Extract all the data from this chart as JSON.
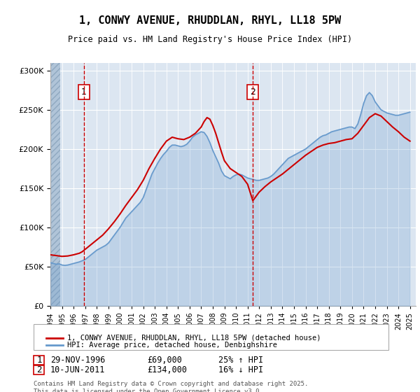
{
  "title": "1, CONWY AVENUE, RHUDDLAN, RHYL, LL18 5PW",
  "subtitle": "Price paid vs. HM Land Registry's House Price Index (HPI)",
  "ylabel": "",
  "xlim_start": 1994.0,
  "xlim_end": 2025.5,
  "ylim": [
    0,
    310000
  ],
  "yticks": [
    0,
    50000,
    100000,
    150000,
    200000,
    250000,
    300000
  ],
  "ytick_labels": [
    "£0",
    "£50K",
    "£100K",
    "£150K",
    "£200K",
    "£250K",
    "£300K"
  ],
  "background_color": "#ffffff",
  "plot_bg_color": "#dce6f1",
  "hatch_color": "#b0c4d8",
  "red_color": "#cc0000",
  "blue_color": "#6699cc",
  "grid_color": "#ffffff",
  "annotation1": {
    "x": 1996.9,
    "label": "1",
    "date": "29-NOV-1996",
    "price": "£69,000",
    "pct": "25% ↑ HPI"
  },
  "annotation2": {
    "x": 2011.45,
    "label": "2",
    "date": "10-JUN-2011",
    "price": "£134,000",
    "pct": "16% ↓ HPI"
  },
  "legend_line1": "1, CONWY AVENUE, RHUDDLAN, RHYL, LL18 5PW (detached house)",
  "legend_line2": "HPI: Average price, detached house, Denbighshire",
  "footer": "Contains HM Land Registry data © Crown copyright and database right 2025.\nThis data is licensed under the Open Government Licence v3.0.",
  "hpi_series": {
    "dates": [
      1994.0,
      1994.25,
      1994.5,
      1994.75,
      1995.0,
      1995.25,
      1995.5,
      1995.75,
      1996.0,
      1996.25,
      1996.5,
      1996.75,
      1997.0,
      1997.25,
      1997.5,
      1997.75,
      1998.0,
      1998.25,
      1998.5,
      1998.75,
      1999.0,
      1999.25,
      1999.5,
      1999.75,
      2000.0,
      2000.25,
      2000.5,
      2000.75,
      2001.0,
      2001.25,
      2001.5,
      2001.75,
      2002.0,
      2002.25,
      2002.5,
      2002.75,
      2003.0,
      2003.25,
      2003.5,
      2003.75,
      2004.0,
      2004.25,
      2004.5,
      2004.75,
      2005.0,
      2005.25,
      2005.5,
      2005.75,
      2006.0,
      2006.25,
      2006.5,
      2006.75,
      2007.0,
      2007.25,
      2007.5,
      2007.75,
      2008.0,
      2008.25,
      2008.5,
      2008.75,
      2009.0,
      2009.25,
      2009.5,
      2009.75,
      2010.0,
      2010.25,
      2010.5,
      2010.75,
      2011.0,
      2011.25,
      2011.5,
      2011.75,
      2012.0,
      2012.25,
      2012.5,
      2012.75,
      2013.0,
      2013.25,
      2013.5,
      2013.75,
      2014.0,
      2014.25,
      2014.5,
      2014.75,
      2015.0,
      2015.25,
      2015.5,
      2015.75,
      2016.0,
      2016.25,
      2016.5,
      2016.75,
      2017.0,
      2017.25,
      2017.5,
      2017.75,
      2018.0,
      2018.25,
      2018.5,
      2018.75,
      2019.0,
      2019.25,
      2019.5,
      2019.75,
      2020.0,
      2020.25,
      2020.5,
      2020.75,
      2021.0,
      2021.25,
      2021.5,
      2021.75,
      2022.0,
      2022.25,
      2022.5,
      2022.75,
      2023.0,
      2023.25,
      2023.5,
      2023.75,
      2024.0,
      2024.25,
      2024.5,
      2024.75,
      2025.0
    ],
    "values": [
      55000,
      54000,
      53000,
      53500,
      52000,
      51500,
      52000,
      53000,
      54000,
      55000,
      56000,
      57500,
      59000,
      62000,
      65000,
      68000,
      71000,
      73000,
      75000,
      77000,
      80000,
      85000,
      90000,
      95000,
      100000,
      106000,
      112000,
      116000,
      120000,
      124000,
      128000,
      132000,
      138000,
      148000,
      158000,
      168000,
      175000,
      182000,
      188000,
      193000,
      197000,
      202000,
      205000,
      205000,
      204000,
      203000,
      204000,
      206000,
      210000,
      215000,
      218000,
      220000,
      222000,
      221000,
      216000,
      208000,
      198000,
      190000,
      182000,
      172000,
      166000,
      164000,
      162000,
      165000,
      167000,
      168000,
      167000,
      165000,
      163000,
      162000,
      161000,
      160000,
      160000,
      161000,
      162000,
      163000,
      165000,
      168000,
      172000,
      176000,
      180000,
      184000,
      188000,
      190000,
      192000,
      194000,
      196000,
      198000,
      200000,
      203000,
      206000,
      209000,
      212000,
      215000,
      217000,
      218000,
      220000,
      222000,
      223000,
      224000,
      225000,
      226000,
      227000,
      228000,
      228000,
      226000,
      232000,
      244000,
      258000,
      268000,
      272000,
      268000,
      260000,
      255000,
      250000,
      248000,
      246000,
      245000,
      244000,
      243000,
      243000,
      244000,
      245000,
      246000,
      247000
    ]
  },
  "price_series": {
    "dates": [
      1994.0,
      1994.5,
      1995.0,
      1995.5,
      1996.0,
      1996.5,
      1996.75,
      1997.0,
      1997.5,
      1998.0,
      1998.5,
      1999.0,
      1999.5,
      2000.0,
      2000.5,
      2001.0,
      2001.5,
      2002.0,
      2002.5,
      2003.0,
      2003.5,
      2004.0,
      2004.5,
      2005.0,
      2005.5,
      2006.0,
      2006.5,
      2007.0,
      2007.25,
      2007.5,
      2007.75,
      2008.0,
      2008.25,
      2008.5,
      2008.75,
      2009.0,
      2009.5,
      2010.0,
      2010.5,
      2011.0,
      2011.45,
      2012.0,
      2012.5,
      2013.0,
      2013.5,
      2014.0,
      2014.5,
      2015.0,
      2015.5,
      2016.0,
      2016.5,
      2017.0,
      2017.5,
      2018.0,
      2018.5,
      2019.0,
      2019.5,
      2020.0,
      2020.5,
      2021.0,
      2021.5,
      2022.0,
      2022.5,
      2023.0,
      2023.5,
      2024.0,
      2024.5,
      2025.0
    ],
    "values": [
      65000,
      64000,
      63000,
      63500,
      65000,
      67000,
      69000,
      72000,
      78000,
      84000,
      90000,
      98000,
      107000,
      117000,
      128000,
      138000,
      148000,
      160000,
      175000,
      188000,
      200000,
      210000,
      215000,
      213000,
      212000,
      215000,
      220000,
      228000,
      235000,
      240000,
      238000,
      230000,
      220000,
      208000,
      196000,
      185000,
      175000,
      170000,
      165000,
      155000,
      134000,
      145000,
      152000,
      158000,
      163000,
      168000,
      174000,
      180000,
      186000,
      192000,
      197000,
      202000,
      205000,
      207000,
      208000,
      210000,
      212000,
      213000,
      220000,
      230000,
      240000,
      245000,
      242000,
      235000,
      228000,
      222000,
      215000,
      210000
    ]
  }
}
